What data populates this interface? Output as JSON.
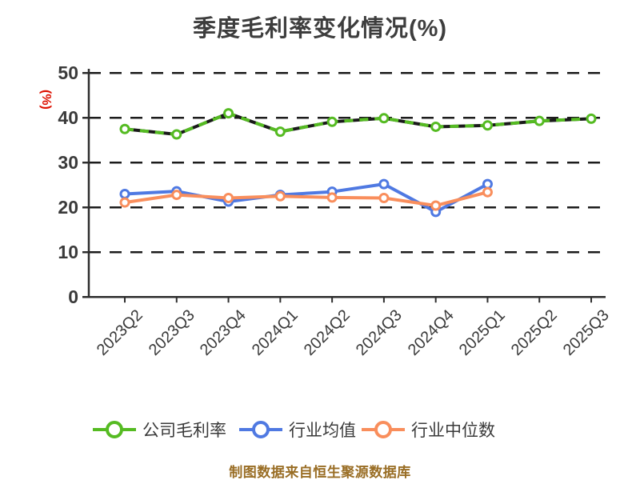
{
  "chart_data": {
    "type": "line",
    "title": "季度毛利率变化情况(%)",
    "ylabel": "(%)",
    "xlabel": "",
    "ylim": [
      0,
      50
    ],
    "yticks": [
      0,
      10,
      20,
      30,
      40,
      50
    ],
    "grid": "horizontal-dashed",
    "legend_position": "bottom",
    "categories": [
      "2023Q2",
      "2023Q3",
      "2023Q4",
      "2024Q1",
      "2024Q2",
      "2024Q3",
      "2024Q4",
      "2025Q1",
      "2025Q2",
      "2025Q3"
    ],
    "series": [
      {
        "name": "公司毛利率",
        "color": "#55bb22",
        "line_style": "dashed",
        "marker": "open-circle",
        "values": [
          37.5,
          36.3,
          41.0,
          36.9,
          39.1,
          39.9,
          38.0,
          38.3,
          39.3,
          39.8
        ]
      },
      {
        "name": "行业均值",
        "color": "#4f79e2",
        "line_style": "solid",
        "marker": "open-circle",
        "values": [
          23.0,
          23.6,
          21.3,
          22.8,
          23.5,
          25.2,
          19.0,
          25.2
        ]
      },
      {
        "name": "行业中位数",
        "color": "#f98e5c",
        "line_style": "solid",
        "marker": "open-circle",
        "values": [
          21.1,
          22.8,
          22.1,
          22.5,
          22.2,
          22.1,
          20.4,
          23.4
        ]
      }
    ],
    "source_note": "制图数据来自恒生聚源数据库"
  },
  "styles": {
    "title": "#3d3d3d",
    "tick": "#3a3a3a",
    "axis": "#2e2e2e",
    "grid": "#1c1c1c",
    "accent": "#dd1100",
    "footer": "#996d24"
  }
}
